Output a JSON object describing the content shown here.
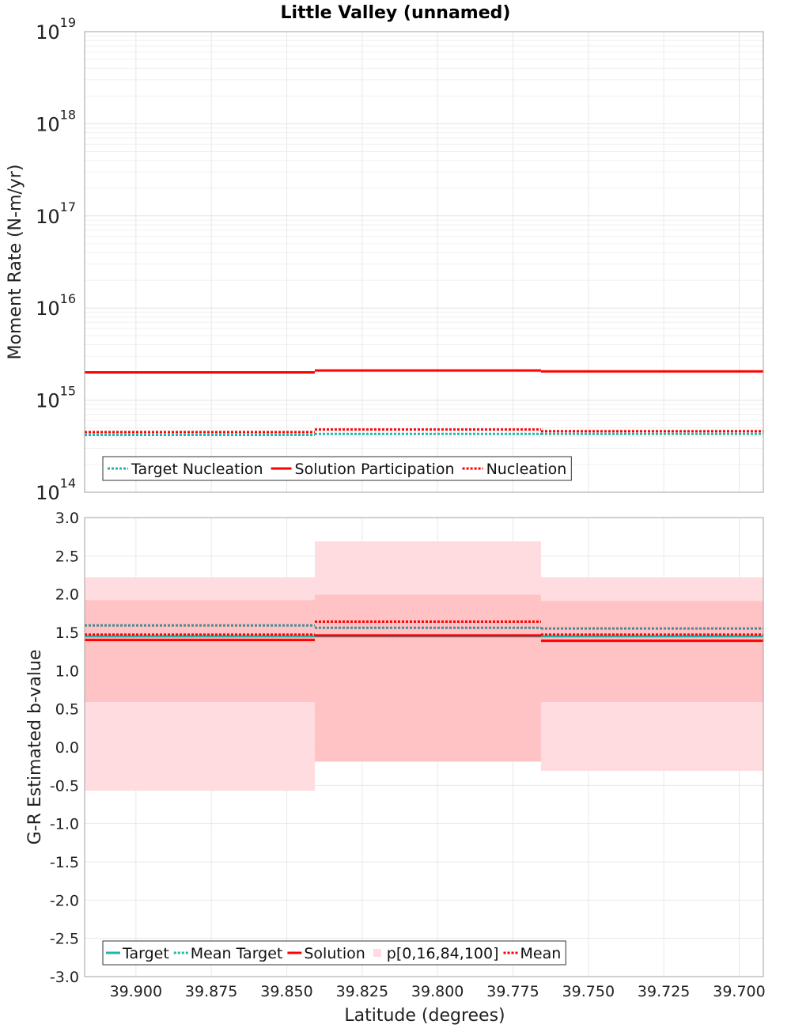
{
  "title": "Little Valley (unnamed)",
  "xlabel": "Latitude (degrees)",
  "colors": {
    "target": "#1fb5ad",
    "solution": "#ff0000",
    "band_outer": "#ffdcdf",
    "band_inner": "#ffc2c5",
    "grid": "#e8e8e8",
    "frame": "#a0a0a0"
  },
  "chart_data": [
    {
      "type": "line",
      "panel": "top",
      "ylabel": "Moment Rate (N-m/yr)",
      "yscale": "log",
      "ylim": [
        100000000000000.0,
        1e+19
      ],
      "ytick_exponents": [
        14,
        15,
        16,
        17,
        18,
        19
      ],
      "xlim": [
        39.917,
        39.692
      ],
      "xticks": [
        "39.900",
        "39.875",
        "39.850",
        "39.825",
        "39.800",
        "39.775",
        "39.750",
        "39.725",
        "39.700"
      ],
      "xtick_values": [
        39.9,
        39.875,
        39.85,
        39.825,
        39.8,
        39.775,
        39.75,
        39.725,
        39.7
      ],
      "bins": [
        [
          39.917,
          39.8407
        ],
        [
          39.8407,
          39.7657
        ],
        [
          39.7657,
          39.692
        ]
      ],
      "grid": true,
      "legend_position": "bottom-left",
      "series": [
        {
          "name": "Target Nucleation",
          "style": "dotted",
          "color": "#1fb5ad",
          "values": [
            420000000000000.0,
            430000000000000.0,
            430000000000000.0
          ]
        },
        {
          "name": "Solution Participation",
          "style": "solid",
          "color": "#ff0000",
          "values": [
            2000000000000000.0,
            2100000000000000.0,
            2050000000000000.0
          ]
        },
        {
          "name": "Nucleation",
          "style": "dotted",
          "color": "#ff0000",
          "values": [
            450000000000000.0,
            480000000000000.0,
            460000000000000.0
          ]
        }
      ]
    },
    {
      "type": "line",
      "panel": "bottom",
      "ylabel": "G-R Estimated b-value",
      "ylim": [
        -3.0,
        3.0
      ],
      "yticks": [
        "-3.0",
        "-2.5",
        "-2.0",
        "-1.5",
        "-1.0",
        "-0.5",
        "0.0",
        "0.5",
        "1.0",
        "1.5",
        "2.0",
        "2.5",
        "3.0"
      ],
      "ytick_values": [
        -3.0,
        -2.5,
        -2.0,
        -1.5,
        -1.0,
        -0.5,
        0.0,
        0.5,
        1.0,
        1.5,
        2.0,
        2.5,
        3.0
      ],
      "xlim": [
        39.917,
        39.692
      ],
      "xticks": [
        "39.900",
        "39.875",
        "39.850",
        "39.825",
        "39.800",
        "39.775",
        "39.750",
        "39.725",
        "39.700"
      ],
      "xtick_values": [
        39.9,
        39.875,
        39.85,
        39.825,
        39.8,
        39.775,
        39.75,
        39.725,
        39.7
      ],
      "bins": [
        [
          39.917,
          39.8407
        ],
        [
          39.8407,
          39.7657
        ],
        [
          39.7657,
          39.692
        ]
      ],
      "grid": true,
      "legend_position": "bottom-left",
      "bands": {
        "name": "p[0,16,84,100]",
        "outer_low": [
          -0.57,
          -0.19,
          -0.31
        ],
        "outer_high": [
          2.22,
          2.69,
          2.22
        ],
        "inner_low": [
          0.59,
          -0.19,
          0.59
        ],
        "inner_high": [
          1.92,
          1.99,
          1.91
        ]
      },
      "series": [
        {
          "name": "Target",
          "style": "solid",
          "color": "#1fb5ad",
          "values": [
            1.45,
            1.45,
            1.45
          ]
        },
        {
          "name": "Mean Target",
          "style": "dotted",
          "color": "#1fb5ad",
          "values": [
            1.59,
            1.56,
            1.55
          ]
        },
        {
          "name": "Solution",
          "style": "solid",
          "color": "#ff0000",
          "values": [
            1.4,
            1.46,
            1.39
          ]
        },
        {
          "name": "Mean",
          "style": "dotted",
          "color": "#ff0000",
          "values": [
            1.47,
            1.64,
            1.47
          ]
        }
      ],
      "legend_order": [
        "Target",
        "Mean Target",
        "Solution",
        "p[0,16,84,100]",
        "Mean"
      ]
    }
  ]
}
